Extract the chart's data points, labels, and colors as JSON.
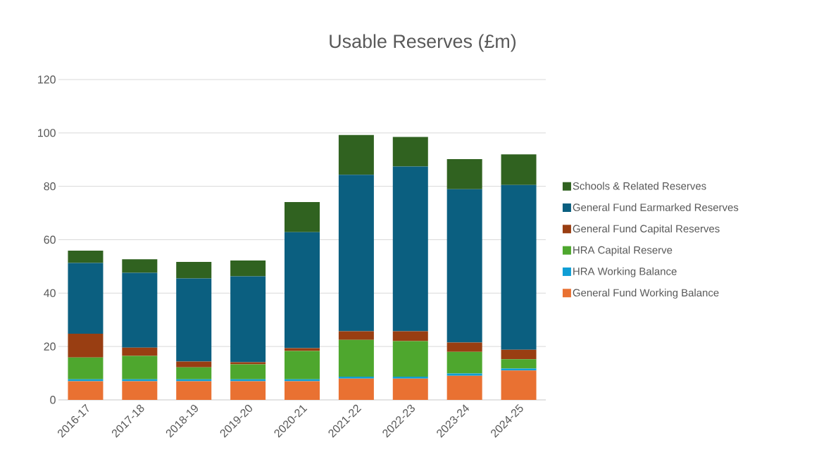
{
  "chart_data": {
    "type": "bar",
    "title": "Usable Reserves (£m)",
    "stacked": true,
    "grid": "y",
    "legend": "right",
    "categories": [
      "2016-17",
      "2017-18",
      "2018-19",
      "2019-20",
      "2020-21",
      "2021-22",
      "2022-23",
      "2023-24",
      "2024-25"
    ],
    "ylim": [
      0,
      120
    ],
    "yticks": [
      0,
      20,
      40,
      60,
      80,
      100,
      120
    ],
    "series": [
      {
        "name": "General Fund Working Balance",
        "color": "#e97132",
        "values": [
          7.0,
          7.0,
          7.0,
          7.0,
          7.0,
          8.0,
          8.0,
          9.0,
          11.0
        ]
      },
      {
        "name": "HRA Working Balance",
        "color": "#0f9ed5",
        "values": [
          0.7,
          0.7,
          0.7,
          0.7,
          0.7,
          0.7,
          0.7,
          0.9,
          0.7
        ]
      },
      {
        "name": "HRA Capital Reserve",
        "color": "#4ea72e",
        "values": [
          8.2,
          8.8,
          4.5,
          5.6,
          10.6,
          13.8,
          13.3,
          8.1,
          3.5
        ]
      },
      {
        "name": "General Fund Capital Reserves",
        "color": "#993e12",
        "values": [
          8.9,
          3.1,
          2.2,
          0.8,
          1.1,
          3.2,
          3.7,
          3.5,
          3.6
        ]
      },
      {
        "name": "General Fund Earmarked Reserves",
        "color": "#0b5f80",
        "values": [
          26.5,
          28.0,
          31.1,
          32.2,
          43.4,
          58.6,
          61.7,
          57.4,
          61.7
        ]
      },
      {
        "name": "Schools & Related Reserves",
        "color": "#306220",
        "values": [
          4.6,
          5.1,
          6.2,
          5.9,
          11.3,
          14.9,
          11.1,
          11.3,
          11.5
        ]
      }
    ]
  }
}
